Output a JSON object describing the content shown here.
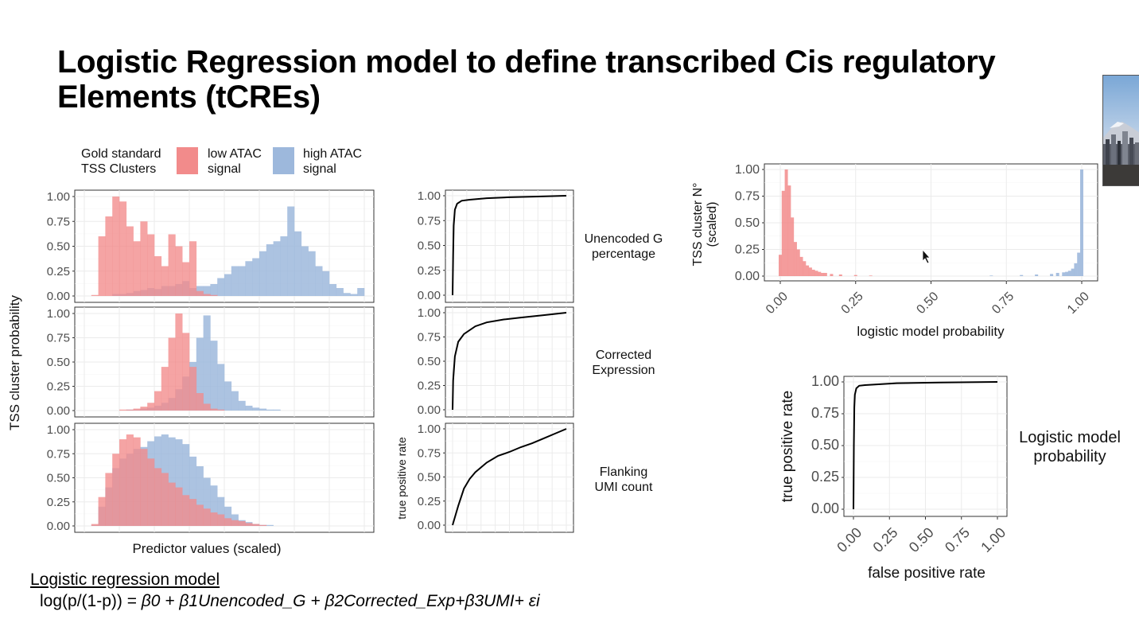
{
  "slide": {
    "title": "Logistic Regression model to define transcribed Cis regulatory Elements (tCREs)",
    "model_heading": "Logistic regression model",
    "formula_prefix": "log(p/(1-p)) = ",
    "formula_terms": "β0 + β1Unencoded_G + β2Corrected_Exp+β3UMI+ εi"
  },
  "legend": {
    "title_line1": "Gold standard",
    "title_line2": "TSS Clusters",
    "low_line1": "low ATAC",
    "low_line2": "signal",
    "high_line1": "high ATAC",
    "high_line2": "signal"
  },
  "colors": {
    "low_atac": "#f28b8b",
    "high_atac": "#9db8dc",
    "grid": "#ebebeb",
    "curve": "#000000"
  },
  "chart_data": [
    {
      "type": "histogram",
      "panel": "Unencoded G percentage",
      "xlabel": "Predictor values (scaled)",
      "ylabel": "TSS cluster probability",
      "ylim": [
        0,
        1
      ],
      "yticks": [
        "0.00",
        "0.25",
        "0.50",
        "0.75",
        "1.00"
      ],
      "series": [
        {
          "name": "low ATAC signal",
          "values": [
            0,
            0.01,
            0.6,
            0.8,
            1.0,
            0.95,
            0.7,
            0.55,
            0.75,
            0.62,
            0.4,
            0.3,
            0.62,
            0.5,
            0.34,
            0.55,
            0.05,
            0.02,
            0.01,
            0,
            0,
            0,
            0,
            0,
            0,
            0,
            0,
            0,
            0,
            0,
            0,
            0,
            0,
            0,
            0,
            0,
            0,
            0,
            0,
            0
          ]
        },
        {
          "name": "high ATAC signal",
          "values": [
            0,
            0,
            0,
            0,
            0.02,
            0.02,
            0.03,
            0.05,
            0.06,
            0.08,
            0.07,
            0.1,
            0.1,
            0.12,
            0.15,
            0.08,
            0.1,
            0.1,
            0.12,
            0.18,
            0.22,
            0.3,
            0.3,
            0.35,
            0.38,
            0.45,
            0.52,
            0.55,
            0.6,
            0.9,
            0.65,
            0.5,
            0.45,
            0.3,
            0.25,
            0.12,
            0.08,
            0.03,
            0.02,
            0.08
          ]
        }
      ]
    },
    {
      "type": "histogram",
      "panel": "Corrected Expression",
      "ylim": [
        0,
        1
      ],
      "yticks": [
        "0.00",
        "0.25",
        "0.50",
        "0.75",
        "1.00"
      ],
      "series": [
        {
          "name": "low ATAC signal",
          "values": [
            0,
            0,
            0,
            0,
            0,
            0.01,
            0.01,
            0.02,
            0.04,
            0.08,
            0.2,
            0.45,
            0.75,
            1.0,
            0.8,
            0.45,
            0.18,
            0.07,
            0.02,
            0.01,
            0,
            0,
            0,
            0,
            0,
            0,
            0,
            0,
            0,
            0,
            0,
            0,
            0,
            0,
            0,
            0,
            0,
            0,
            0,
            0
          ]
        },
        {
          "name": "high ATAC signal",
          "values": [
            0,
            0,
            0,
            0,
            0,
            0,
            0.01,
            0.01,
            0.02,
            0.03,
            0.05,
            0.08,
            0.13,
            0.22,
            0.35,
            0.5,
            0.75,
            0.98,
            0.72,
            0.48,
            0.3,
            0.2,
            0.1,
            0.05,
            0.03,
            0.02,
            0.01,
            0.01,
            0,
            0,
            0,
            0,
            0,
            0,
            0,
            0,
            0,
            0,
            0,
            0
          ]
        }
      ]
    },
    {
      "type": "histogram",
      "panel": "Flanking UMI count",
      "ylim": [
        0,
        1
      ],
      "yticks": [
        "0.00",
        "0.25",
        "0.50",
        "0.75",
        "1.00"
      ],
      "series": [
        {
          "name": "low ATAC signal",
          "values": [
            0,
            0.02,
            0.3,
            0.55,
            0.75,
            0.9,
            0.95,
            0.92,
            0.8,
            0.7,
            0.6,
            0.55,
            0.45,
            0.4,
            0.32,
            0.28,
            0.22,
            0.18,
            0.14,
            0.12,
            0.08,
            0.06,
            0.05,
            0.03,
            0.02,
            0.01,
            0,
            0,
            0,
            0,
            0,
            0,
            0,
            0,
            0,
            0,
            0,
            0,
            0,
            0
          ]
        },
        {
          "name": "high ATAC signal",
          "values": [
            0,
            0.01,
            0.2,
            0.4,
            0.6,
            0.7,
            0.75,
            0.8,
            0.82,
            0.88,
            0.93,
            0.95,
            0.92,
            0.9,
            0.85,
            0.72,
            0.62,
            0.5,
            0.42,
            0.3,
            0.2,
            0.12,
            0.06,
            0.04,
            0.02,
            0.01,
            0.01,
            0,
            0,
            0,
            0,
            0,
            0,
            0,
            0,
            0,
            0,
            0,
            0,
            0
          ]
        }
      ]
    },
    {
      "type": "line",
      "panel": "Unencoded G percentage ROC",
      "ylabel": "true positive rate",
      "ylim": [
        0,
        1
      ],
      "xlim": [
        0,
        1
      ],
      "yticks": [
        "0.00",
        "0.25",
        "0.50",
        "0.75",
        "1.00"
      ],
      "x": [
        0,
        0.005,
        0.01,
        0.02,
        0.04,
        0.08,
        0.15,
        0.3,
        0.5,
        0.75,
        1.0
      ],
      "y": [
        0,
        0.4,
        0.7,
        0.86,
        0.92,
        0.95,
        0.96,
        0.975,
        0.985,
        0.992,
        1.0
      ]
    },
    {
      "type": "line",
      "panel": "Corrected Expression ROC",
      "ylim": [
        0,
        1
      ],
      "xlim": [
        0,
        1
      ],
      "yticks": [
        "0.00",
        "0.25",
        "0.50",
        "0.75",
        "1.00"
      ],
      "x": [
        0,
        0.005,
        0.02,
        0.05,
        0.1,
        0.2,
        0.3,
        0.45,
        0.6,
        0.8,
        1.0
      ],
      "y": [
        0,
        0.3,
        0.55,
        0.7,
        0.78,
        0.86,
        0.9,
        0.93,
        0.95,
        0.975,
        1.0
      ]
    },
    {
      "type": "line",
      "panel": "Flanking UMI count ROC",
      "ylim": [
        0,
        1
      ],
      "xlim": [
        0,
        1
      ],
      "yticks": [
        "0.00",
        "0.25",
        "0.50",
        "0.75",
        "1.00"
      ],
      "x": [
        0,
        0.05,
        0.1,
        0.15,
        0.2,
        0.3,
        0.4,
        0.5,
        0.6,
        0.7,
        0.8,
        0.9,
        1.0
      ],
      "y": [
        0,
        0.2,
        0.38,
        0.48,
        0.55,
        0.65,
        0.72,
        0.76,
        0.81,
        0.85,
        0.9,
        0.95,
        1.0
      ]
    },
    {
      "type": "histogram",
      "panel": "Logistic model probability distribution",
      "xlabel": "logistic model probability",
      "ylabel_line1": "TSS cluster N°",
      "ylabel_line2": "(scaled)",
      "xlim": [
        0,
        1
      ],
      "ylim": [
        0,
        1
      ],
      "xticks": [
        "0.00",
        "0.25",
        "0.50",
        "0.75",
        "1.00"
      ],
      "yticks": [
        "0.00",
        "0.25",
        "0.50",
        "0.75",
        "1.00"
      ],
      "series": [
        {
          "name": "low ATAC signal",
          "x": [
            0.0,
            0.01,
            0.02,
            0.03,
            0.04,
            0.05,
            0.06,
            0.07,
            0.08,
            0.09,
            0.1,
            0.11,
            0.12,
            0.13,
            0.14,
            0.15,
            0.17,
            0.2,
            0.25,
            0.3
          ],
          "values": [
            0.2,
            0.8,
            1.0,
            0.85,
            0.55,
            0.32,
            0.25,
            0.18,
            0.14,
            0.1,
            0.08,
            0.06,
            0.05,
            0.04,
            0.03,
            0.03,
            0.02,
            0.015,
            0.01,
            0.005
          ]
        },
        {
          "name": "high ATAC signal",
          "x": [
            0.7,
            0.8,
            0.85,
            0.9,
            0.92,
            0.94,
            0.95,
            0.96,
            0.97,
            0.98,
            0.99,
            1.0
          ],
          "values": [
            0.005,
            0.01,
            0.015,
            0.02,
            0.03,
            0.035,
            0.04,
            0.05,
            0.07,
            0.12,
            0.22,
            1.0
          ]
        }
      ]
    },
    {
      "type": "line",
      "panel": "Logistic model probability ROC",
      "xlabel": "false positive rate",
      "ylabel": "true positive rate",
      "xlim": [
        0,
        1
      ],
      "ylim": [
        0,
        1
      ],
      "xticks": [
        "0.00",
        "0.25",
        "0.50",
        "0.75",
        "1.00"
      ],
      "yticks": [
        "0.00",
        "0.25",
        "0.50",
        "0.75",
        "1.00"
      ],
      "x": [
        0,
        0.003,
        0.006,
        0.01,
        0.02,
        0.04,
        0.08,
        0.15,
        0.3,
        0.6,
        1.0
      ],
      "y": [
        0,
        0.5,
        0.8,
        0.9,
        0.95,
        0.97,
        0.975,
        0.98,
        0.99,
        0.995,
        1.0
      ]
    }
  ],
  "panel_labels": {
    "p1_line1": "Unencoded G",
    "p1_line2": "percentage",
    "p2_line1": "Corrected",
    "p2_line2": "Expression",
    "p3_line1": "Flanking",
    "p3_line2": "UMI count",
    "model_line1": "Logistic model",
    "model_line2": "probability"
  }
}
